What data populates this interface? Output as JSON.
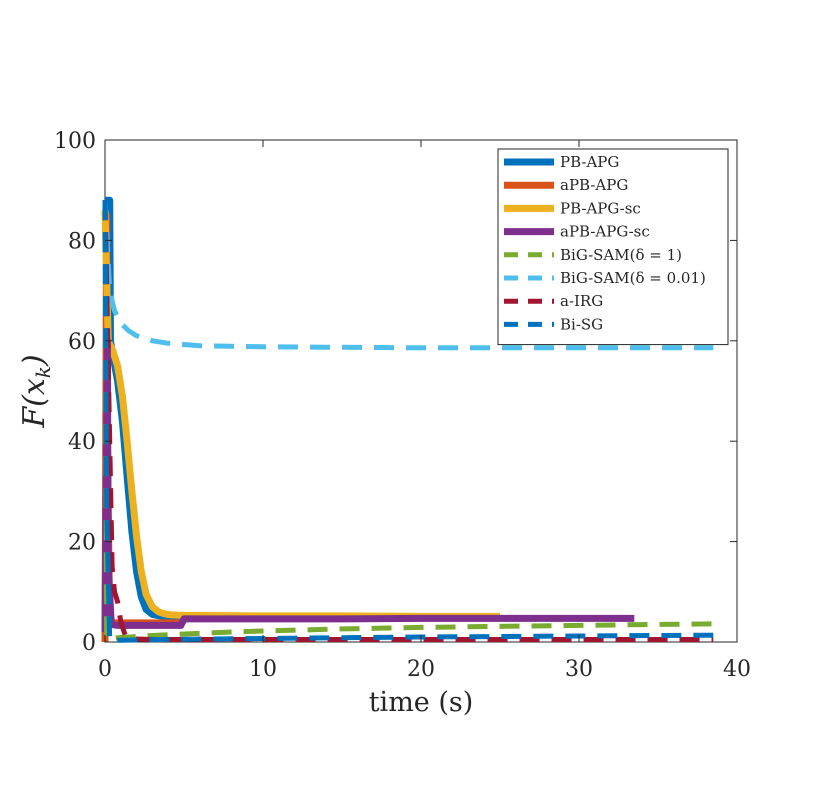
{
  "chart_data": {
    "type": "line",
    "title": "",
    "xlabel": "time (s)",
    "ylabel": "F(x_k)",
    "ylabel_parts": {
      "base": "F(x",
      "sub": "k",
      "close": ")"
    },
    "xlim": [
      0,
      40
    ],
    "ylim": [
      0,
      100
    ],
    "xticks": [
      0,
      10,
      20,
      30,
      40
    ],
    "yticks": [
      0,
      20,
      40,
      60,
      80,
      100
    ],
    "grid": false,
    "legend_position": "top-right",
    "series": [
      {
        "name": "PB-APG",
        "color": "#0072BD",
        "dash": "solid",
        "x": [
          0,
          0.3,
          0.35,
          0.5,
          0.8,
          1.1,
          1.4,
          1.7,
          2.0,
          2.3,
          2.6,
          3.0,
          3.5,
          4.0,
          4.5,
          5,
          10,
          15,
          20,
          21.5
        ],
        "y": [
          88,
          88,
          60,
          57,
          52,
          44,
          33,
          22,
          14,
          9,
          6.5,
          5.5,
          5.2,
          5.0,
          5.0,
          5.0,
          5.0,
          5.0,
          5.0,
          5.0
        ]
      },
      {
        "name": "aPB-APG",
        "color": "#D95319",
        "dash": "solid",
        "x": [
          0,
          0.1,
          0.15,
          0.3,
          0.6,
          1.0,
          2,
          4,
          4.8,
          5,
          10,
          15,
          20,
          25
        ],
        "y": [
          0,
          85,
          40,
          4,
          3.8,
          3.8,
          3.8,
          3.8,
          3.8,
          5.0,
          5.0,
          5.0,
          5.0,
          5.0
        ]
      },
      {
        "name": "PB-APG-sc",
        "color": "#EDB120",
        "dash": "solid",
        "x": [
          0,
          0.2,
          0.35,
          0.5,
          0.8,
          1.1,
          1.4,
          1.7,
          2.0,
          2.3,
          2.6,
          3.0,
          3.4,
          3.8,
          4.2,
          5,
          10,
          15,
          20,
          25
        ],
        "y": [
          86,
          60,
          59,
          58,
          55,
          49,
          40,
          30,
          21,
          14,
          9.5,
          7,
          6,
          5.6,
          5.4,
          5.3,
          5.2,
          5.2,
          5.1,
          5.1
        ]
      },
      {
        "name": "aPB-APG-sc",
        "color": "#7E2F8E",
        "dash": "solid",
        "x": [
          0,
          0.15,
          0.2,
          0.4,
          0.8,
          2,
          4,
          4.8,
          5,
          10,
          15,
          20,
          25,
          30,
          33.5
        ],
        "y": [
          2,
          60,
          15,
          3.5,
          3.3,
          3.3,
          3.3,
          3.3,
          4.6,
          4.6,
          4.6,
          4.7,
          4.7,
          4.7,
          4.7
        ]
      },
      {
        "name": "BiG-SAM(δ = 1)",
        "color": "#77AC30",
        "dash": "dashed",
        "x": [
          0,
          0.1,
          1,
          3,
          5,
          8,
          10,
          15,
          20,
          25,
          30,
          35,
          38.5
        ],
        "y": [
          88,
          0.6,
          0.9,
          1.3,
          1.6,
          2.0,
          2.2,
          2.6,
          2.9,
          3.1,
          3.3,
          3.5,
          3.6
        ]
      },
      {
        "name": "BiG-SAM(δ = 0.01)",
        "color": "#4DBEEE",
        "dash": "dashed",
        "x": [
          0,
          0.3,
          0.6,
          1.0,
          1.5,
          2.0,
          3,
          4,
          6,
          8,
          10,
          15,
          20,
          25,
          30,
          35,
          38.5
        ],
        "y": [
          88,
          70,
          66,
          63.5,
          62,
          61,
          60,
          59.5,
          59,
          58.9,
          58.8,
          58.7,
          58.6,
          58.6,
          58.6,
          58.6,
          58.6
        ]
      },
      {
        "name": "a-IRG",
        "color": "#A2142F",
        "dash": "dashed",
        "x": [
          0,
          0.3,
          0.45,
          0.6,
          0.8,
          1.0,
          1.3,
          1.6,
          2,
          3,
          5,
          10,
          20,
          30,
          38.5
        ],
        "y": [
          88,
          40,
          15,
          10,
          8,
          4,
          1.2,
          0.8,
          0.6,
          0.5,
          0.5,
          0.5,
          0.5,
          0.5,
          0.5
        ]
      },
      {
        "name": "Bi-SG",
        "color": "#0072BD",
        "dash": "dashed",
        "x": [
          0,
          0.1,
          0.3,
          1,
          3,
          5,
          10,
          15,
          20,
          25,
          30,
          35,
          38.5
        ],
        "y": [
          88,
          28,
          0.3,
          0.35,
          0.45,
          0.55,
          0.7,
          0.85,
          1.0,
          1.1,
          1.2,
          1.3,
          1.35
        ]
      }
    ]
  }
}
